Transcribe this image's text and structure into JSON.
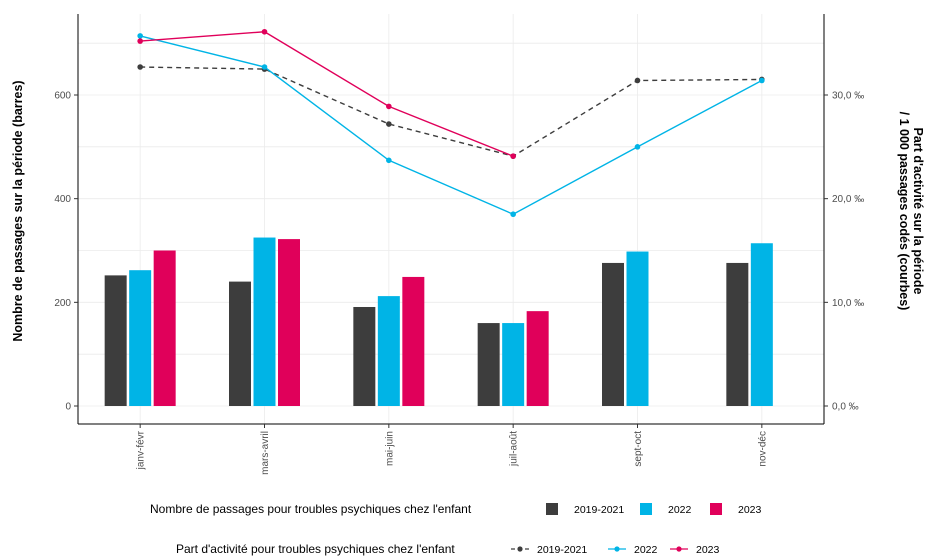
{
  "chart_data": {
    "type": "bar+line",
    "categories": [
      "janv-févr",
      "mars-avril",
      "mai-juin",
      "juil-août",
      "sept-oct",
      "nov-déc"
    ],
    "ylabel": "Nombre de passages sur la période (barres)",
    "ylim": [
      -25,
      760
    ],
    "yticks": [
      0,
      200,
      400,
      600
    ],
    "y2label_line1": "Part d'activité sur la période",
    "y2label_line2": "/ 1 000 passages codés (courbes)",
    "y2ticks": [
      0,
      10,
      20,
      30
    ],
    "y2tick_labels": [
      "0,0 ‰",
      "10,0 ‰",
      "20,0 ‰",
      "30,0 ‰"
    ],
    "bar_series": [
      {
        "name": "2019-2021",
        "color": "#3d3d3d",
        "values": [
          252,
          240,
          191,
          160,
          276,
          276
        ]
      },
      {
        "name": "2022",
        "color": "#00b4e6",
        "values": [
          262,
          325,
          212,
          160,
          298,
          314
        ]
      },
      {
        "name": "2023",
        "color": "#e0005a",
        "values": [
          300,
          322,
          249,
          183,
          null,
          null
        ]
      }
    ],
    "line_series": [
      {
        "name": "2019-2021",
        "color": "#3d3d3d",
        "dashed": true,
        "values": [
          32.7,
          32.5,
          27.2,
          24.1,
          31.4,
          31.5
        ]
      },
      {
        "name": "2022",
        "color": "#00b4e6",
        "dashed": false,
        "values": [
          35.7,
          32.7,
          23.7,
          18.5,
          25.0,
          31.4
        ]
      },
      {
        "name": "2023",
        "color": "#e0005a",
        "dashed": false,
        "values": [
          35.2,
          36.1,
          28.9,
          24.1,
          null,
          null
        ]
      }
    ],
    "legend_bars_title": "Nombre de passages pour troubles psychiques chez l'enfant",
    "legend_lines_title": "Part d'activité pour troubles psychiques chez l'enfant",
    "legend_placement": "bottom",
    "grid": true
  }
}
